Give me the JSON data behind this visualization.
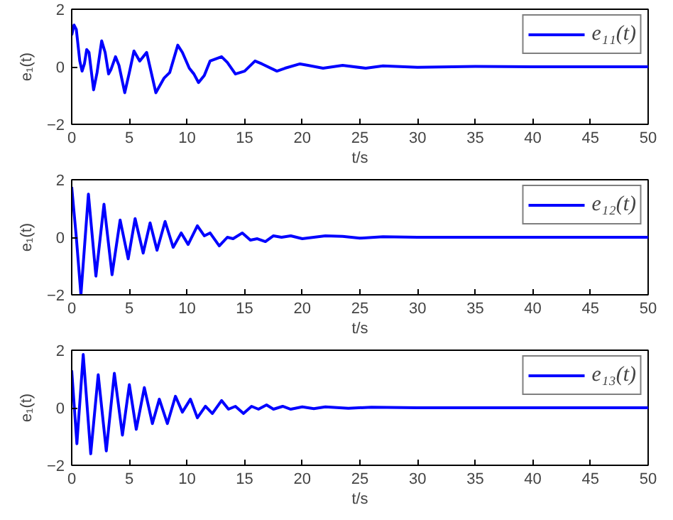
{
  "chart_data": [
    {
      "type": "line",
      "xlabel": "t/s",
      "ylabel": "e₁(t)",
      "xlim": [
        0,
        50
      ],
      "ylim": [
        -2,
        2
      ],
      "xticks": [
        0,
        5,
        10,
        15,
        20,
        25,
        30,
        35,
        40,
        45,
        50
      ],
      "yticks": [
        -2,
        0,
        2
      ],
      "grid": false,
      "legend": "top right",
      "line_style": "solid",
      "series": [
        {
          "name": "e₁₁(t)",
          "color": "#0000ff",
          "x": [
            0,
            0.2,
            0.4,
            0.7,
            0.9,
            1.1,
            1.3,
            1.5,
            1.9,
            2.2,
            2.6,
            2.9,
            3.2,
            3.4,
            3.8,
            4.1,
            4.6,
            5.0,
            5.4,
            5.9,
            6.5,
            7.3,
            8.0,
            8.5,
            9.2,
            9.6,
            10.2,
            10.6,
            11.0,
            11.5,
            12.0,
            13.0,
            13.5,
            14.2,
            15.0,
            15.9,
            16.5,
            17.8,
            18.5,
            19.8,
            20.5,
            21.8,
            23.5,
            25.5,
            27,
            30,
            35,
            40,
            50
          ],
          "values": [
            1.1,
            1.45,
            1.3,
            0.2,
            -0.15,
            0.1,
            0.6,
            0.5,
            -0.8,
            -0.2,
            0.9,
            0.5,
            -0.25,
            -0.1,
            0.35,
            0.05,
            -0.9,
            -0.2,
            0.55,
            0.2,
            0.5,
            -0.9,
            -0.4,
            -0.2,
            0.75,
            0.5,
            -0.05,
            -0.25,
            -0.55,
            -0.3,
            0.2,
            0.35,
            0.15,
            -0.25,
            -0.15,
            0.2,
            0.1,
            -0.15,
            -0.05,
            0.1,
            0.05,
            -0.05,
            0.05,
            -0.05,
            0.03,
            -0.02,
            0.01,
            0,
            0
          ]
        }
      ]
    },
    {
      "type": "line",
      "xlabel": "t/s",
      "ylabel": "e₁(t)",
      "xlim": [
        0,
        50
      ],
      "ylim": [
        -2,
        2
      ],
      "xticks": [
        0,
        5,
        10,
        15,
        20,
        25,
        30,
        35,
        40,
        45,
        50
      ],
      "yticks": [
        -2,
        0,
        2
      ],
      "grid": false,
      "legend": "top right",
      "line_style": "solid",
      "series": [
        {
          "name": "e₁₂(t)",
          "color": "#0000ff",
          "x": [
            0,
            0.4,
            0.8,
            1.45,
            2.1,
            2.8,
            3.5,
            4.2,
            4.9,
            5.5,
            6.2,
            6.8,
            7.4,
            8.1,
            8.8,
            9.5,
            10.1,
            10.9,
            11.5,
            12.0,
            12.8,
            13.5,
            14.0,
            14.8,
            15.5,
            16.1,
            16.8,
            17.5,
            18.2,
            19,
            20,
            21,
            22,
            23.5,
            25,
            27,
            30,
            50
          ],
          "values": [
            1.75,
            0.0,
            -2.0,
            1.5,
            -1.35,
            1.15,
            -1.3,
            0.6,
            -0.75,
            0.65,
            -0.55,
            0.5,
            -0.45,
            0.55,
            -0.35,
            0.15,
            -0.25,
            0.4,
            0.05,
            0.15,
            -0.3,
            0.0,
            -0.05,
            0.15,
            -0.1,
            -0.05,
            -0.15,
            0.05,
            0.0,
            0.05,
            -0.05,
            0.0,
            0.05,
            0.03,
            -0.03,
            0.02,
            0,
            0
          ]
        }
      ]
    },
    {
      "type": "line",
      "xlabel": "t/s",
      "ylabel": "e₁(t)",
      "xlim": [
        0,
        50
      ],
      "ylim": [
        -2,
        2
      ],
      "xticks": [
        0,
        5,
        10,
        15,
        20,
        25,
        30,
        35,
        40,
        45,
        50
      ],
      "yticks": [
        -2,
        0,
        2
      ],
      "grid": false,
      "legend": "top right",
      "line_style": "solid",
      "series": [
        {
          "name": "e₁₃(t)",
          "color": "#0000ff",
          "x": [
            0,
            0.45,
            1.0,
            1.65,
            2.3,
            3.0,
            3.7,
            4.4,
            5.0,
            5.6,
            6.3,
            7.0,
            7.6,
            8.3,
            9.0,
            9.6,
            10.3,
            10.9,
            11.6,
            12.2,
            13,
            13.6,
            14.2,
            14.9,
            15.6,
            16.2,
            16.9,
            17.5,
            18.3,
            19,
            20,
            21,
            22,
            24,
            26,
            30,
            50
          ],
          "values": [
            1.3,
            -1.25,
            1.85,
            -1.6,
            1.15,
            -1.5,
            1.2,
            -0.95,
            0.8,
            -0.75,
            0.7,
            -0.55,
            0.3,
            -0.55,
            0.4,
            -0.15,
            0.3,
            -0.35,
            0.05,
            -0.2,
            0.25,
            -0.05,
            0.05,
            -0.2,
            0.05,
            -0.05,
            0.1,
            -0.05,
            0.05,
            -0.05,
            0.03,
            -0.03,
            0.03,
            -0.02,
            0.02,
            0,
            0
          ]
        }
      ]
    }
  ]
}
